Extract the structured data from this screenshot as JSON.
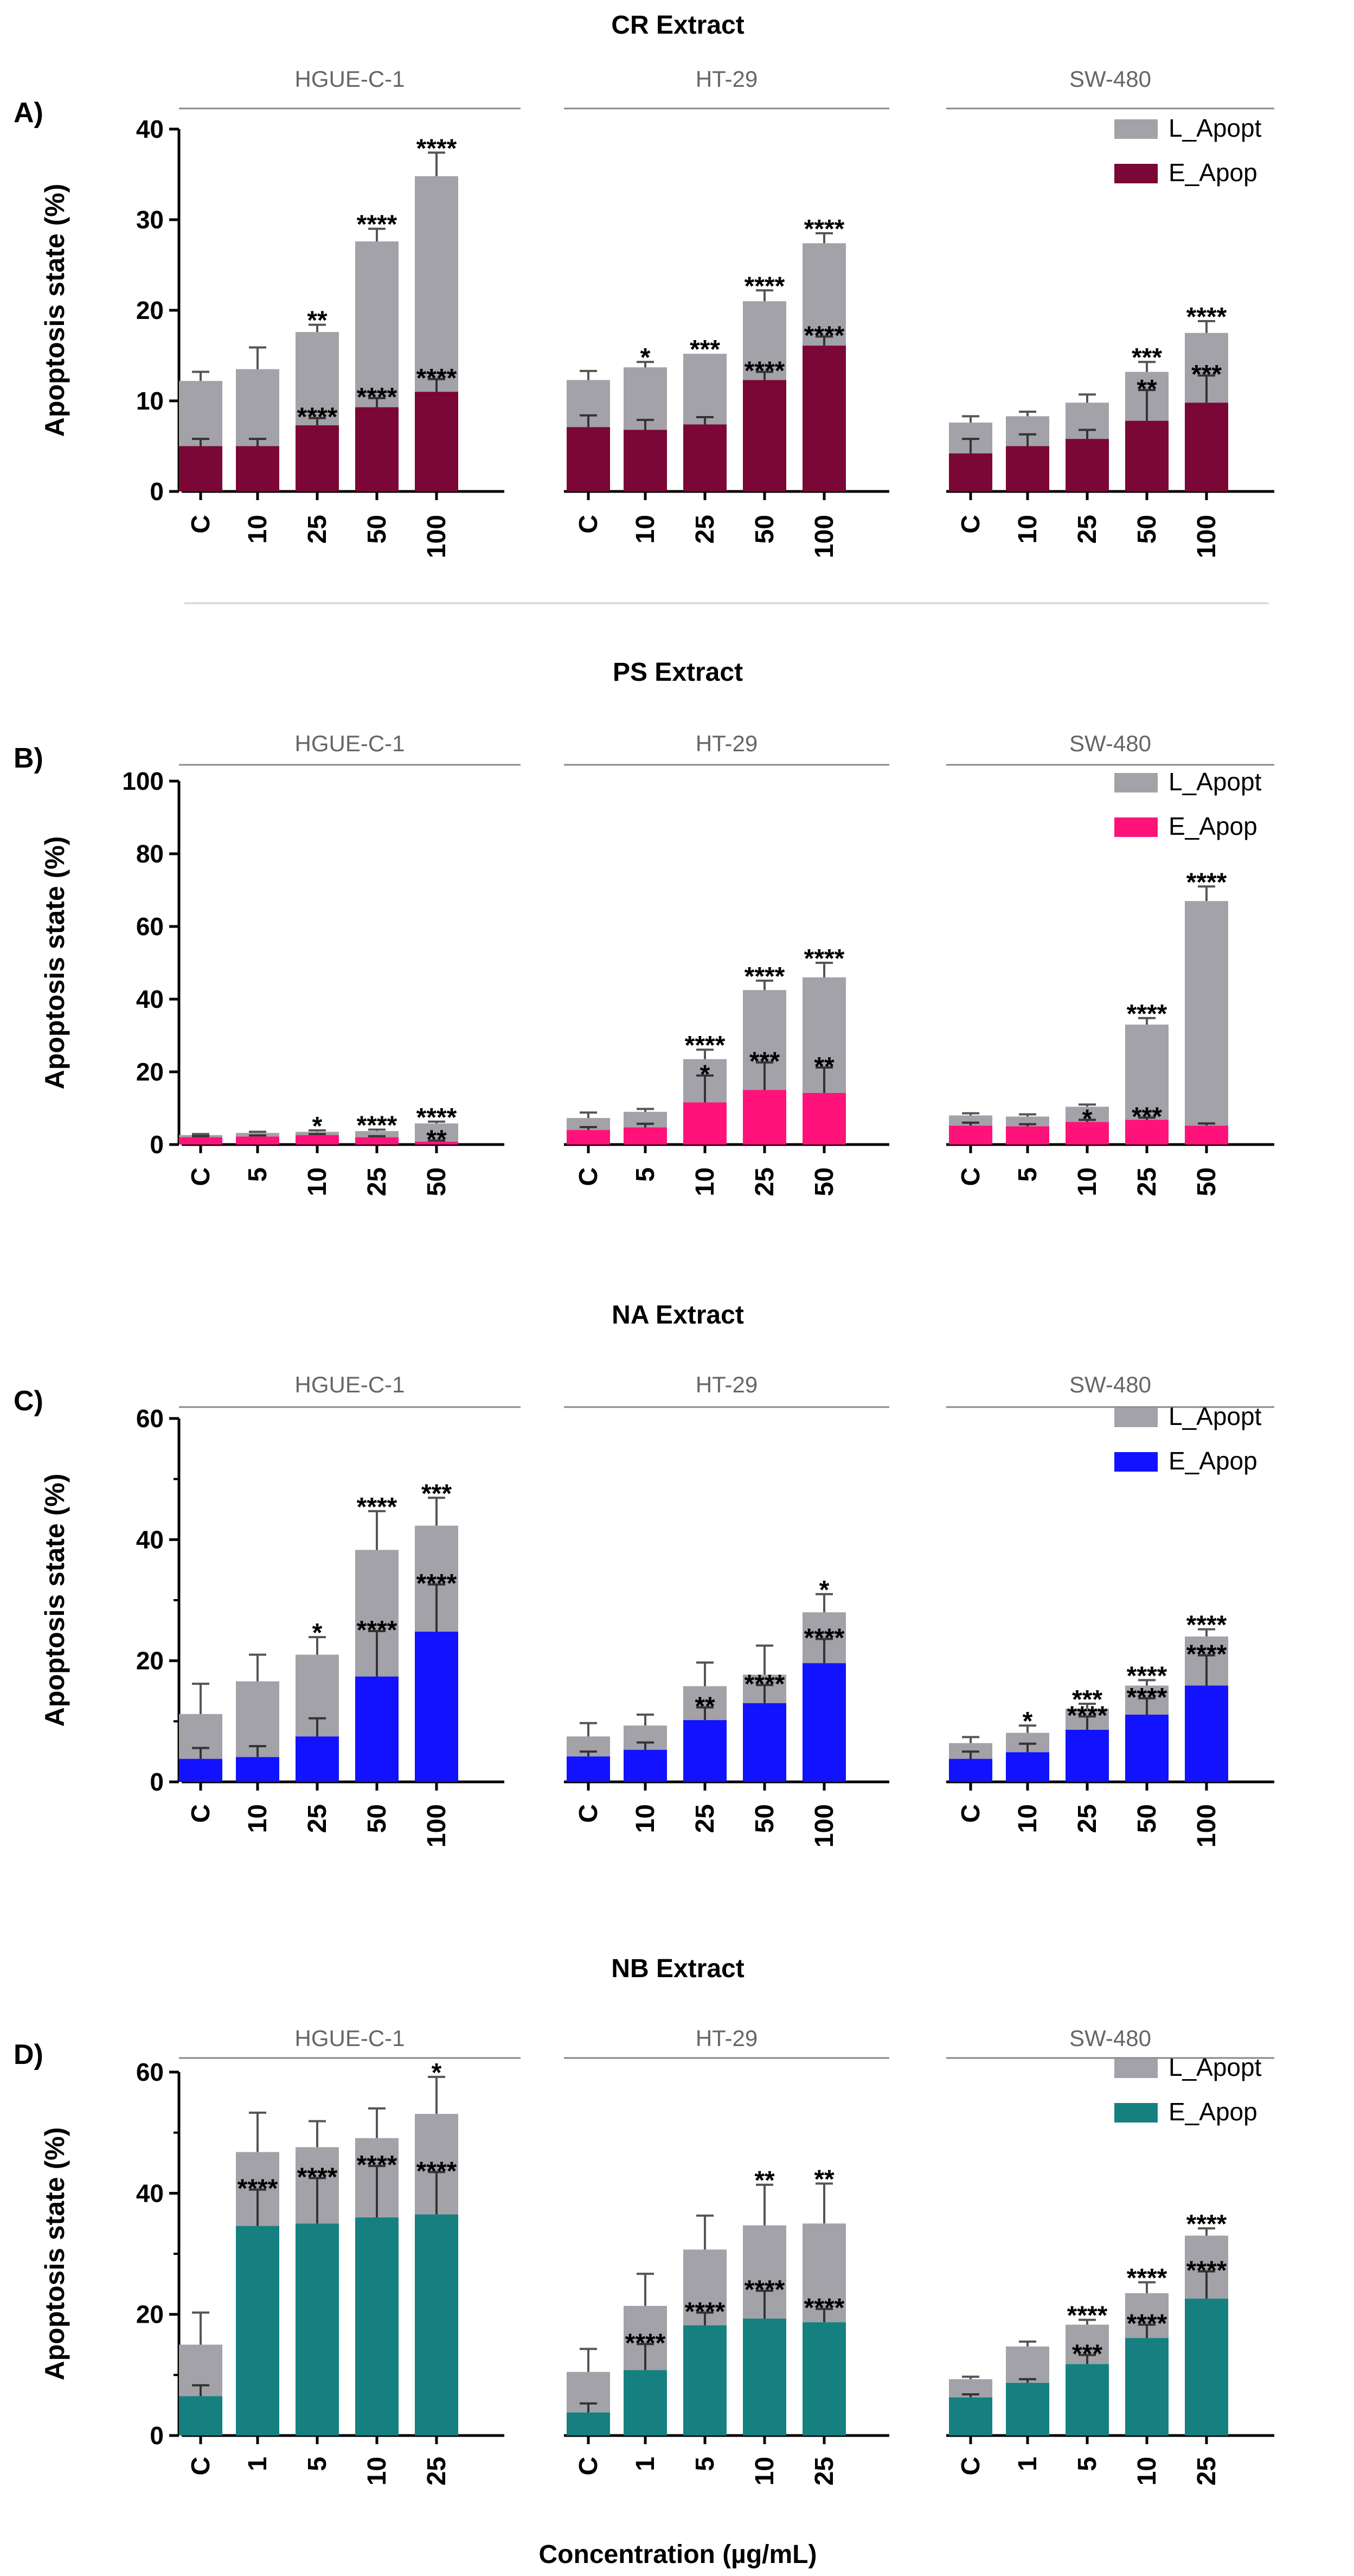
{
  "figure": {
    "xlabel_prefix": "Concentration (",
    "xlabel_unit": "µg/mL",
    "xlabel_suffix": ")",
    "legend_late": "L_Apopt",
    "legend_early": "E_Apop"
  },
  "colors": {
    "late": "#a2a2a8",
    "cr_early": "#7a0735",
    "ps_early": "#ff1279",
    "na_early": "#1212ff",
    "nb_early": "#168080",
    "axis": "#000000",
    "group_line": "#888888",
    "group_label": "#666666"
  },
  "chart_data": [
    {
      "type": "bar",
      "stacked": true,
      "panel": "A)",
      "title": "CR Extract",
      "ylabel": "Apoptosis state (%)",
      "ylim": [
        0,
        40
      ],
      "yticks": [
        0,
        10,
        20,
        30,
        40
      ],
      "minor_ticks": false,
      "early_color_key": "cr_early",
      "series": [
        "E_Apop",
        "L_Apopt"
      ],
      "groups": [
        {
          "name": "HGUE-C-1",
          "categories": [
            "C",
            "10",
            "25",
            "50",
            "100"
          ],
          "early": [
            5,
            5,
            7.3,
            9.3,
            11
          ],
          "early_err": [
            0.8,
            0.8,
            0.8,
            1.0,
            1.4
          ],
          "total": [
            12.2,
            13.5,
            17.6,
            27.6,
            34.8
          ],
          "total_err": [
            1.0,
            2.4,
            0.8,
            1.4,
            2.6
          ],
          "early_sig": [
            "",
            "",
            "****",
            "****",
            "****"
          ],
          "late_sig": [
            "",
            "",
            "**",
            "****",
            "****"
          ]
        },
        {
          "name": "HT-29",
          "categories": [
            "C",
            "10",
            "25",
            "50",
            "100"
          ],
          "early": [
            7.1,
            6.8,
            7.4,
            12.3,
            16.1
          ],
          "early_err": [
            1.3,
            1.1,
            0.8,
            0.9,
            1.0
          ],
          "total": [
            12.3,
            13.7,
            15.2,
            21,
            27.4
          ],
          "total_err": [
            1.0,
            0.6,
            0.0,
            1.2,
            1.1
          ],
          "early_sig": [
            "",
            "",
            "",
            "****",
            "****"
          ],
          "late_sig": [
            "",
            "*",
            "***",
            "****",
            "****"
          ]
        },
        {
          "name": "SW-480",
          "categories": [
            "C",
            "10",
            "25",
            "50",
            "100"
          ],
          "early": [
            4.2,
            5,
            5.8,
            7.8,
            9.8
          ],
          "early_err": [
            1.6,
            1.3,
            1.0,
            3.4,
            3.0
          ],
          "total": [
            7.6,
            8.3,
            9.8,
            13.2,
            17.5
          ],
          "total_err": [
            0.7,
            0.5,
            0.9,
            1.1,
            1.3
          ],
          "early_sig": [
            "",
            "",
            "",
            "**",
            "***"
          ],
          "late_sig": [
            "",
            "",
            "",
            "***",
            "****"
          ]
        }
      ]
    },
    {
      "type": "bar",
      "stacked": true,
      "panel": "B)",
      "title": "PS Extract",
      "ylabel": "Apoptosis state (%)",
      "ylim": [
        0,
        100
      ],
      "yticks": [
        0,
        20,
        40,
        60,
        80,
        100
      ],
      "minor_ticks": false,
      "early_color_key": "ps_early",
      "series": [
        "E_Apop",
        "L_Apopt"
      ],
      "groups": [
        {
          "name": "HGUE-C-1",
          "categories": [
            "C",
            "5",
            "10",
            "25",
            "50"
          ],
          "early": [
            2,
            2.2,
            2.6,
            2,
            0.8
          ],
          "early_err": [
            0.3,
            0.3,
            0.3,
            0.3,
            0.3
          ],
          "total": [
            2.6,
            3.2,
            3.5,
            3.7,
            5.8
          ],
          "total_err": [
            0.3,
            0.3,
            0.4,
            0.4,
            0.5
          ],
          "early_sig": [
            "",
            "",
            "",
            "",
            "**"
          ],
          "late_sig": [
            "",
            "",
            "*",
            "****",
            "****"
          ]
        },
        {
          "name": "HT-29",
          "categories": [
            "C",
            "5",
            "10",
            "25",
            "50"
          ],
          "early": [
            4,
            4.7,
            11.6,
            15,
            14.2
          ],
          "early_err": [
            0.8,
            1.0,
            7.4,
            7.6,
            7.0
          ],
          "total": [
            7.3,
            9,
            23.5,
            42.5,
            46
          ],
          "total_err": [
            1.5,
            0.8,
            2.6,
            2.6,
            4.0
          ],
          "early_sig": [
            "",
            "",
            "*",
            "***",
            "**"
          ],
          "late_sig": [
            "",
            "",
            "****",
            "****",
            "****"
          ]
        },
        {
          "name": "SW-480",
          "categories": [
            "C",
            "5",
            "10",
            "25",
            "50"
          ],
          "early": [
            5.2,
            5,
            6.2,
            6.8,
            5.2
          ],
          "early_err": [
            0.8,
            0.6,
            0.6,
            0.6,
            0.6
          ],
          "total": [
            8,
            7.7,
            10.4,
            33,
            67
          ],
          "total_err": [
            0.6,
            0.6,
            0.6,
            1.8,
            4.0
          ],
          "early_sig": [
            "",
            "",
            "*",
            "***",
            ""
          ],
          "late_sig": [
            "",
            "",
            "",
            "****",
            "****"
          ]
        }
      ]
    },
    {
      "type": "bar",
      "stacked": true,
      "panel": "C)",
      "title": "NA Extract",
      "ylabel": "Apoptosis state (%)",
      "ylim": [
        0,
        60
      ],
      "yticks": [
        0,
        20,
        40,
        60
      ],
      "minor_ticks": true,
      "early_color_key": "na_early",
      "series": [
        "E_Apop",
        "L_Apopt"
      ],
      "groups": [
        {
          "name": "HGUE-C-1",
          "categories": [
            "C",
            "10",
            "25",
            "50",
            "100"
          ],
          "early": [
            3.8,
            4.1,
            7.5,
            17.4,
            24.8
          ],
          "early_err": [
            1.8,
            1.8,
            3.0,
            7.5,
            7.8
          ],
          "total": [
            11.2,
            16.6,
            21,
            38.3,
            42.3
          ],
          "total_err": [
            5.0,
            4.4,
            2.9,
            6.4,
            4.6
          ],
          "early_sig": [
            "",
            "",
            "",
            "****",
            "****"
          ],
          "late_sig": [
            "",
            "",
            "*",
            "****",
            "***"
          ]
        },
        {
          "name": "HT-29",
          "categories": [
            "C",
            "10",
            "25",
            "50",
            "100"
          ],
          "early": [
            4.2,
            5.3,
            10.2,
            13,
            19.6
          ],
          "early_err": [
            0.8,
            1.2,
            2.1,
            3.0,
            4.0
          ],
          "total": [
            7.5,
            9.3,
            15.8,
            17.7,
            28
          ],
          "total_err": [
            2.2,
            1.8,
            3.9,
            4.8,
            3.0
          ],
          "early_sig": [
            "",
            "",
            "**",
            "****",
            "****"
          ],
          "late_sig": [
            "",
            "",
            "",
            "",
            "*"
          ]
        },
        {
          "name": "SW-480",
          "categories": [
            "C",
            "10",
            "25",
            "50",
            "100"
          ],
          "early": [
            3.8,
            4.9,
            8.6,
            11.1,
            15.9
          ],
          "early_err": [
            1.2,
            1.4,
            2.2,
            2.7,
            5.0
          ],
          "total": [
            6.4,
            8.1,
            12.1,
            15.9,
            24
          ],
          "total_err": [
            1.0,
            1.2,
            0.8,
            0.9,
            1.2
          ],
          "early_sig": [
            "",
            "",
            "****",
            "****",
            "****"
          ],
          "late_sig": [
            "",
            "*",
            "***",
            "****",
            "****"
          ]
        }
      ]
    },
    {
      "type": "bar",
      "stacked": true,
      "panel": "D)",
      "title": "NB Extract",
      "ylabel": "Apoptosis state (%)",
      "ylim": [
        0,
        60
      ],
      "yticks": [
        0,
        20,
        40,
        60
      ],
      "minor_ticks": true,
      "early_color_key": "nb_early",
      "series": [
        "E_Apop",
        "L_Apopt"
      ],
      "groups": [
        {
          "name": "HGUE-C-1",
          "categories": [
            "C",
            "1",
            "5",
            "10",
            "25"
          ],
          "early": [
            6.5,
            34.6,
            35,
            36,
            36.5
          ],
          "early_err": [
            1.8,
            6.0,
            7.5,
            8.5,
            7.0
          ],
          "total": [
            15,
            46.8,
            47.6,
            49.1,
            53.1
          ],
          "total_err": [
            5.3,
            6.5,
            4.3,
            4.9,
            6.1
          ],
          "early_sig": [
            "",
            "****",
            "****",
            "****",
            "****"
          ],
          "late_sig": [
            "",
            "",
            "",
            "",
            "*"
          ]
        },
        {
          "name": "HT-29",
          "categories": [
            "C",
            "1",
            "5",
            "10",
            "25"
          ],
          "early": [
            3.8,
            10.8,
            18.2,
            19.3,
            18.7
          ],
          "early_err": [
            1.5,
            4.3,
            2.1,
            4.6,
            2.2
          ],
          "total": [
            10.5,
            21.4,
            30.7,
            34.7,
            35
          ],
          "total_err": [
            3.8,
            5.3,
            5.6,
            6.7,
            6.6
          ],
          "early_sig": [
            "",
            "****",
            "****",
            "****",
            "****"
          ],
          "late_sig": [
            "",
            "",
            "",
            "**",
            "**"
          ]
        },
        {
          "name": "SW-480",
          "categories": [
            "C",
            "1",
            "5",
            "10",
            "25"
          ],
          "early": [
            6.3,
            8.7,
            11.8,
            16.1,
            22.6
          ],
          "early_err": [
            0.5,
            0.6,
            1.5,
            2.2,
            4.5
          ],
          "total": [
            9.3,
            14.7,
            18.3,
            23.5,
            33
          ],
          "total_err": [
            0.4,
            0.8,
            0.8,
            1.8,
            1.2
          ],
          "early_sig": [
            "",
            "",
            "***",
            "****",
            "****"
          ],
          "late_sig": [
            "",
            "",
            "****",
            "****",
            "****"
          ]
        }
      ]
    }
  ]
}
